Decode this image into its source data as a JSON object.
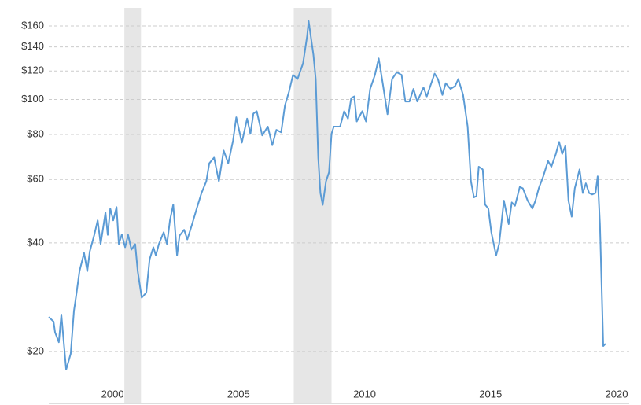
{
  "chart_data": {
    "type": "line",
    "log_scale": true,
    "grid": true,
    "color": "#5b9bd5",
    "shade_color": "#e6e6e6",
    "shaded_ranges": [
      [
        2000.47,
        2001.13
      ],
      [
        2007.19,
        2008.69
      ]
    ],
    "xlim": [
      1997.47,
      2020.5
    ],
    "xticks": [
      2000,
      2005,
      2010,
      2015,
      2020
    ],
    "ylim": [
      16.1,
      179.6
    ],
    "yticks": [
      {
        "value": 20,
        "label": "$20"
      },
      {
        "value": 40,
        "label": "$40"
      },
      {
        "value": 60,
        "label": "$60"
      },
      {
        "value": 80,
        "label": "$80"
      },
      {
        "value": 100,
        "label": "$100"
      },
      {
        "value": 120,
        "label": "$120"
      },
      {
        "value": 140,
        "label": "$140"
      },
      {
        "value": 160,
        "label": "$160"
      }
    ],
    "x": [
      1997.47,
      1997.66,
      1997.72,
      1997.87,
      1997.97,
      1998.16,
      1998.34,
      1998.47,
      1998.56,
      1998.69,
      1998.87,
      1999.0,
      1999.1,
      1999.28,
      1999.41,
      1999.53,
      1999.72,
      1999.81,
      1999.91,
      2000.03,
      2000.16,
      2000.25,
      2000.37,
      2000.5,
      2000.62,
      2000.75,
      2000.9,
      2001.0,
      2001.16,
      2001.34,
      2001.47,
      2001.62,
      2001.72,
      2001.84,
      2002.03,
      2002.16,
      2002.28,
      2002.41,
      2002.56,
      2002.66,
      2002.84,
      2002.97,
      2003.16,
      2003.34,
      2003.53,
      2003.72,
      2003.84,
      2004.03,
      2004.22,
      2004.41,
      2004.59,
      2004.78,
      2004.91,
      2005.13,
      2005.34,
      2005.47,
      2005.59,
      2005.72,
      2005.94,
      2006.16,
      2006.34,
      2006.5,
      2006.69,
      2006.84,
      2007.0,
      2007.16,
      2007.34,
      2007.56,
      2007.72,
      2007.78,
      2007.97,
      2008.06,
      2008.16,
      2008.25,
      2008.34,
      2008.47,
      2008.59,
      2008.69,
      2008.78,
      2009.03,
      2009.19,
      2009.34,
      2009.47,
      2009.59,
      2009.69,
      2009.91,
      2010.06,
      2010.22,
      2010.41,
      2010.56,
      2010.72,
      2010.91,
      2011.09,
      2011.28,
      2011.47,
      2011.62,
      2011.78,
      2011.94,
      2012.09,
      2012.34,
      2012.47,
      2012.59,
      2012.78,
      2012.91,
      2013.09,
      2013.22,
      2013.41,
      2013.59,
      2013.72,
      2013.91,
      2014.09,
      2014.22,
      2014.34,
      2014.44,
      2014.53,
      2014.69,
      2014.78,
      2014.91,
      2015.03,
      2015.22,
      2015.34,
      2015.53,
      2015.72,
      2015.84,
      2015.97,
      2016.16,
      2016.28,
      2016.47,
      2016.66,
      2016.78,
      2016.91,
      2017.09,
      2017.28,
      2017.41,
      2017.59,
      2017.72,
      2017.84,
      2017.97,
      2018.09,
      2018.22,
      2018.34,
      2018.53,
      2018.66,
      2018.78,
      2018.91,
      2019.03,
      2019.16,
      2019.25,
      2019.34,
      2019.47,
      2019.56
    ],
    "values": [
      24.9,
      24.2,
      22.6,
      21.2,
      25.3,
      17.8,
      19.7,
      25.9,
      28.6,
      33.4,
      37.5,
      33.4,
      37.9,
      42.2,
      46.2,
      39.7,
      48.6,
      42.1,
      49.8,
      46.2,
      50.3,
      39.7,
      42.2,
      38.9,
      42.1,
      38.3,
      39.7,
      33.4,
      28.2,
      29.1,
      36.0,
      38.9,
      36.9,
      39.7,
      42.8,
      39.7,
      46.2,
      51.1,
      36.9,
      41.9,
      43.5,
      40.9,
      45.1,
      49.8,
      55.0,
      59.3,
      66.5,
      69.0,
      59.3,
      72.2,
      66.5,
      76.9,
      89.3,
      75.9,
      88.5,
      80.3,
      91.4,
      92.8,
      79.5,
      84.1,
      74.7,
      82.4,
      81.1,
      96.3,
      105,
      117,
      114,
      126,
      150,
      165,
      133,
      114,
      69,
      55,
      51,
      59.3,
      62.8,
      80.3,
      84.1,
      84.1,
      92.8,
      88.5,
      100.8,
      102,
      86.9,
      92.8,
      86.9,
      107,
      117,
      130,
      111,
      91,
      114,
      119,
      117,
      98.7,
      98.7,
      107,
      98.7,
      108,
      102,
      108,
      118,
      114,
      103,
      111,
      107,
      109,
      114,
      103,
      84.1,
      59.3,
      53.5,
      54,
      65.1,
      64.0,
      51.1,
      49.8,
      42.8,
      36.9,
      39.7,
      52.4,
      45.1,
      51.8,
      50.7,
      57.2,
      56.7,
      52.4,
      49.8,
      52.4,
      56.7,
      61.2,
      67.5,
      65.1,
      70.6,
      76.3,
      70.6,
      74.4,
      52.4,
      47.3,
      56.7,
      64.0,
      55.0,
      58.5,
      55.0,
      54.5,
      55.0,
      61.2,
      45.1,
      20.7,
      21.0
    ]
  }
}
